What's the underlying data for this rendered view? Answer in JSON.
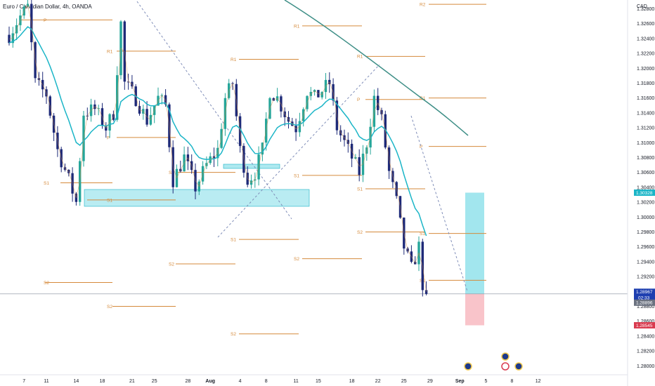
{
  "header": {
    "title": "Euro / Canadian Dollar, 4h, OANDA"
  },
  "colors": {
    "bull": "#26a69a",
    "bear": "#1e2a78",
    "ema_fast": "#1bb5c7",
    "ema_slow": "#3d8e86",
    "pivot": "#d58a3b",
    "trend": "#7f8db8",
    "zone": "#8be0ea",
    "stop": "#f7b5bd",
    "price_badge": "#1e3fb0",
    "target_badge": "#1bb5c7",
    "stop_badge": "#d93b4f",
    "mid_badge": "#6b7280"
  },
  "chart_data": {
    "type": "candlestick",
    "y_axis": {
      "currency": "CAD",
      "min": 1.2788,
      "max": 1.3288,
      "ticks": [
        "1.32800",
        "1.32600",
        "1.32400",
        "1.32200",
        "1.32000",
        "1.31800",
        "1.31600",
        "1.31400",
        "1.31200",
        "1.31000",
        "1.30800",
        "1.30600",
        "1.30400",
        "1.30200",
        "1.30000",
        "1.29800",
        "1.29600",
        "1.29400",
        "1.29200",
        "1.29000",
        "1.28800",
        "1.28600",
        "1.28400",
        "1.28200",
        "1.28000"
      ]
    },
    "x_axis": {
      "labels": [
        {
          "t": "7",
          "i": 4,
          "bold": false
        },
        {
          "t": "11",
          "i": 10,
          "bold": false
        },
        {
          "t": "14",
          "i": 18,
          "bold": false
        },
        {
          "t": "18",
          "i": 25,
          "bold": false
        },
        {
          "t": "21",
          "i": 33,
          "bold": false
        },
        {
          "t": "25",
          "i": 39,
          "bold": false
        },
        {
          "t": "28",
          "i": 48,
          "bold": false
        },
        {
          "t": "Aug",
          "i": 54,
          "bold": true
        },
        {
          "t": "4",
          "i": 62,
          "bold": false
        },
        {
          "t": "8",
          "i": 69,
          "bold": false
        },
        {
          "t": "11",
          "i": 77,
          "bold": false
        },
        {
          "t": "15",
          "i": 83,
          "bold": false
        },
        {
          "t": "18",
          "i": 92,
          "bold": false
        },
        {
          "t": "22",
          "i": 99,
          "bold": false
        },
        {
          "t": "25",
          "i": 106,
          "bold": false
        },
        {
          "t": "29",
          "i": 113,
          "bold": false
        },
        {
          "t": "Sep",
          "i": 121,
          "bold": true
        },
        {
          "t": "5",
          "i": 128,
          "bold": false
        },
        {
          "t": "8",
          "i": 135,
          "bold": false
        },
        {
          "t": "12",
          "i": 142,
          "bold": false
        }
      ]
    },
    "price_labels": [
      {
        "name": "target",
        "text": "1.30328",
        "price": 1.30328
      },
      {
        "name": "last-price",
        "text": "1.28967",
        "price": 1.28967,
        "sub": "02:33"
      },
      {
        "name": "mid",
        "text": "1.28896",
        "price": 1.28896
      },
      {
        "name": "stop",
        "text": "1.28545",
        "price": 1.28545
      }
    ],
    "pivot_labels": [
      "P",
      "R1",
      "S1",
      "S2",
      "R2"
    ]
  }
}
